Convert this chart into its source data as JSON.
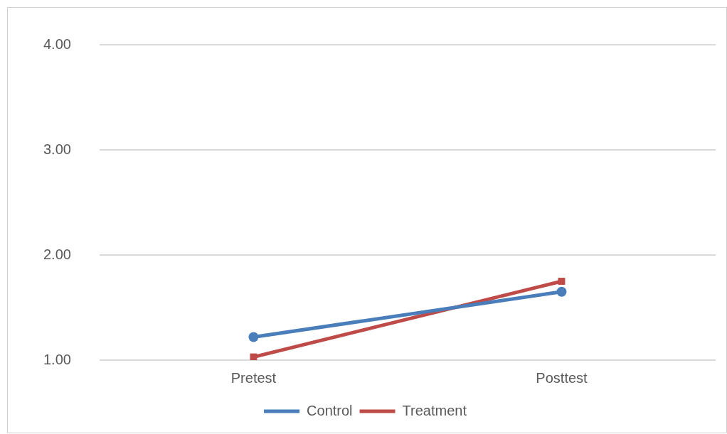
{
  "chart_data": {
    "type": "line",
    "categories": [
      "Pretest",
      "Posttest"
    ],
    "series": [
      {
        "name": "Control",
        "color": "#4a7ebb",
        "values": [
          1.22,
          1.65
        ],
        "marker": "circle"
      },
      {
        "name": "Treatment",
        "color": "#be4b48",
        "values": [
          1.03,
          1.75
        ],
        "marker": "square"
      }
    ],
    "ylim": [
      1,
      4
    ],
    "yticks": [
      {
        "value": 1,
        "label": "1.00"
      },
      {
        "value": 2,
        "label": "2.00"
      },
      {
        "value": 3,
        "label": "3.00"
      },
      {
        "value": 4,
        "label": "4.00"
      }
    ],
    "grid": "y",
    "legend": "bottom",
    "line_style": "solid"
  }
}
